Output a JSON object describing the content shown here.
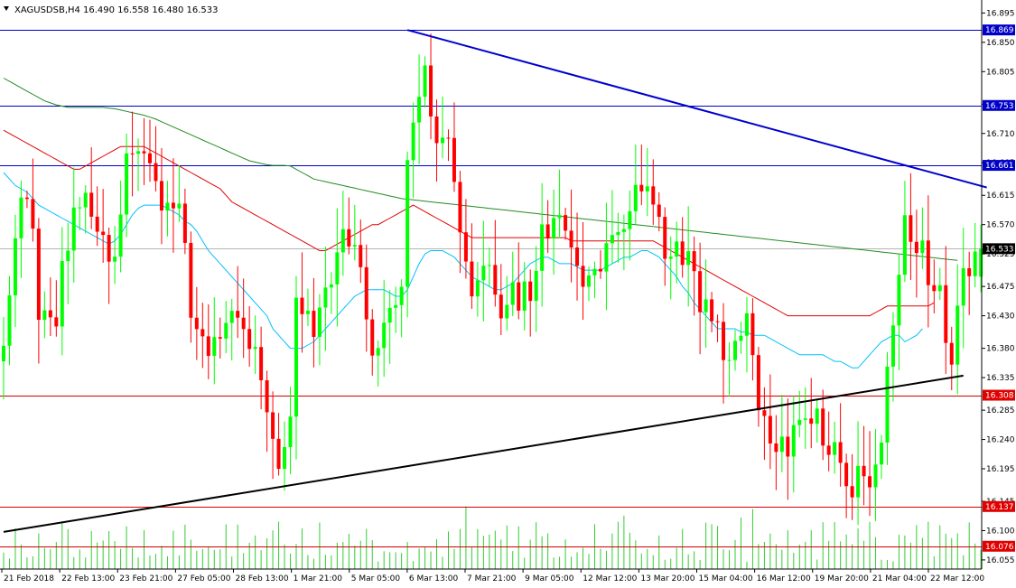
{
  "header": {
    "symbol": "XAGUSDSB,H4",
    "ohlc": "16.490 16.558 16.480 16.533"
  },
  "colors": {
    "bull": "#00ff00",
    "bear": "#ff0000",
    "volume": "#32cd32",
    "ma_short": "#00bfff",
    "ma_mid": "#e00000",
    "ma_long": "#228b22",
    "hline_blue": "#0000c8",
    "hline_red": "#d00000",
    "trend_down": "#0000cc",
    "trend_up": "#000000",
    "tag_blue": "#0000c8",
    "tag_red": "#e00000"
  },
  "chart_data": {
    "type": "candlestick",
    "y_range": [
      16.041,
      16.915
    ],
    "y_ticks": [
      "16.895",
      "16.850",
      "16.805",
      "16.755",
      "16.710",
      "16.665",
      "16.615",
      "16.570",
      "16.525",
      "16.475",
      "16.430",
      "16.380",
      "16.335",
      "16.285",
      "16.240",
      "16.195",
      "16.145",
      "16.100",
      "16.055"
    ],
    "x_ticks": [
      "21 Feb 2018",
      "22 Feb 13:00",
      "23 Feb 21:00",
      "27 Feb 05:00",
      "28 Feb 13:00",
      "1 Mar 21:00",
      "5 Mar 05:00",
      "6 Mar 13:00",
      "7 Mar 21:00",
      "9 Mar 05:00",
      "12 Mar 12:00",
      "13 Mar 20:00",
      "15 Mar 04:00",
      "16 Mar 12:00",
      "19 Mar 20:00",
      "21 Mar 04:00",
      "22 Mar 12:00"
    ],
    "levels": [
      {
        "label": "16.869",
        "value": 16.869,
        "style": "blue"
      },
      {
        "label": "16.753",
        "value": 16.753,
        "style": "blue"
      },
      {
        "label": "16.661",
        "value": 16.661,
        "style": "blue"
      },
      {
        "label": "16.533",
        "value": 16.533,
        "style": "current"
      },
      {
        "label": "16.308",
        "value": 16.308,
        "style": "red"
      },
      {
        "label": "16.137",
        "value": 16.137,
        "style": "red"
      },
      {
        "label": "16.076",
        "value": 16.076,
        "style": "red"
      }
    ],
    "trendlines": [
      {
        "name": "down",
        "from": [
          69,
          16.869
        ],
        "to": [
          168,
          16.627
        ]
      },
      {
        "name": "up",
        "from": [
          0,
          16.098
        ],
        "to": [
          164,
          16.338
        ]
      }
    ],
    "ma_short": [
      16.65,
      16.64,
      16.63,
      16.625,
      16.62,
      16.61,
      16.6,
      16.595,
      16.59,
      16.585,
      16.58,
      16.575,
      16.57,
      16.565,
      16.56,
      16.555,
      16.55,
      16.545,
      16.54,
      16.545,
      16.555,
      16.57,
      16.585,
      16.595,
      16.6,
      16.6,
      16.6,
      16.6,
      16.595,
      16.59,
      16.585,
      16.575,
      16.57,
      16.56,
      16.545,
      16.53,
      16.52,
      16.51,
      16.5,
      16.49,
      16.48,
      16.47,
      16.46,
      16.45,
      16.44,
      16.43,
      16.41,
      16.4,
      16.39,
      16.38,
      16.38,
      16.38,
      16.385,
      16.39,
      16.4,
      16.41,
      16.42,
      16.43,
      16.44,
      16.45,
      16.46,
      16.465,
      16.47,
      16.47,
      16.47,
      16.47,
      16.465,
      16.46,
      16.46,
      16.47,
      16.49,
      16.51,
      16.525,
      16.53,
      16.53,
      16.53,
      16.525,
      16.52,
      16.51,
      16.5,
      16.49,
      16.485,
      16.48,
      16.475,
      16.47,
      16.47,
      16.475,
      16.48,
      16.49,
      16.5,
      16.51,
      16.515,
      16.52,
      16.52,
      16.515,
      16.51,
      16.51,
      16.51,
      16.505,
      16.5,
      16.5,
      16.5,
      16.5,
      16.505,
      16.51,
      16.515,
      16.52,
      16.52,
      16.525,
      16.53,
      16.53,
      16.525,
      16.52,
      16.51,
      16.5,
      16.49,
      16.475,
      16.465,
      16.45,
      16.44,
      16.43,
      16.42,
      16.41,
      16.41,
      16.41,
      16.41,
      16.405,
      16.405,
      16.4,
      16.4,
      16.4,
      16.395,
      16.39,
      16.385,
      16.38,
      16.375,
      16.37,
      16.37,
      16.37,
      16.37,
      16.37,
      16.365,
      16.36,
      16.36,
      16.355,
      16.35,
      16.35,
      16.36,
      16.37,
      16.38,
      16.39,
      16.395,
      16.4,
      16.4,
      16.39,
      16.395,
      16.4,
      16.41
    ],
    "ma_mid": [
      16.715,
      16.71,
      16.705,
      16.7,
      16.695,
      16.69,
      16.685,
      16.68,
      16.675,
      16.67,
      16.665,
      16.66,
      16.655,
      16.655,
      16.66,
      16.665,
      16.67,
      16.675,
      16.68,
      16.685,
      16.69,
      16.69,
      16.69,
      16.69,
      16.69,
      16.685,
      16.68,
      16.675,
      16.67,
      16.665,
      16.66,
      16.655,
      16.65,
      16.645,
      16.64,
      16.635,
      16.63,
      16.625,
      16.615,
      16.605,
      16.6,
      16.595,
      16.59,
      16.585,
      16.58,
      16.575,
      16.57,
      16.565,
      16.56,
      16.555,
      16.55,
      16.545,
      16.54,
      16.535,
      16.53,
      16.53,
      16.535,
      16.54,
      16.545,
      16.55,
      16.555,
      16.56,
      16.565,
      16.57,
      16.57,
      16.575,
      16.58,
      16.585,
      16.59,
      16.595,
      16.6,
      16.595,
      16.59,
      16.585,
      16.58,
      16.575,
      16.57,
      16.565,
      16.56,
      16.555,
      16.55,
      16.55,
      16.55,
      16.55,
      16.55,
      16.55,
      16.55,
      16.55,
      16.55,
      16.55,
      16.55,
      16.55,
      16.55,
      16.55,
      16.55,
      16.55,
      16.55,
      16.545,
      16.545,
      16.545,
      16.545,
      16.545,
      16.545,
      16.545,
      16.545,
      16.545,
      16.545,
      16.545,
      16.545,
      16.545,
      16.545,
      16.545,
      16.54,
      16.535,
      16.53,
      16.525,
      16.52,
      16.515,
      16.51,
      16.505,
      16.5,
      16.495,
      16.49,
      16.485,
      16.48,
      16.475,
      16.47,
      16.465,
      16.46,
      16.455,
      16.45,
      16.445,
      16.44,
      16.435,
      16.43,
      16.43,
      16.43,
      16.43,
      16.43,
      16.43,
      16.43,
      16.43,
      16.43,
      16.43,
      16.43,
      16.43,
      16.43,
      16.43,
      16.43,
      16.435,
      16.44,
      16.445,
      16.445,
      16.445,
      16.445,
      16.445,
      16.445,
      16.445,
      16.445,
      16.45
    ],
    "ma_long": [
      16.795,
      16.79,
      16.785,
      16.78,
      16.775,
      16.77,
      16.765,
      16.76,
      16.757,
      16.754,
      16.752,
      16.75,
      16.75,
      16.75,
      16.75,
      16.75,
      16.75,
      16.75,
      16.749,
      16.748,
      16.746,
      16.744,
      16.742,
      16.74,
      16.738,
      16.735,
      16.732,
      16.728,
      16.724,
      16.72,
      16.716,
      16.712,
      16.708,
      16.704,
      16.7,
      16.696,
      16.692,
      16.688,
      16.684,
      16.68,
      16.676,
      16.672,
      16.668,
      16.666,
      16.664,
      16.662,
      16.661,
      16.661,
      16.661,
      16.66,
      16.655,
      16.65,
      16.645,
      16.64,
      16.638,
      16.636,
      16.634,
      16.632,
      16.63,
      16.628,
      16.626,
      16.624,
      16.622,
      16.62,
      16.618,
      16.616,
      16.614,
      16.612,
      16.61,
      16.609,
      16.608,
      16.607,
      16.606,
      16.605,
      16.604,
      16.603,
      16.602,
      16.601,
      16.6,
      16.599,
      16.598,
      16.597,
      16.596,
      16.595,
      16.594,
      16.593,
      16.592,
      16.591,
      16.59,
      16.589,
      16.588,
      16.587,
      16.586,
      16.585,
      16.584,
      16.583,
      16.582,
      16.581,
      16.58,
      16.579,
      16.578,
      16.577,
      16.576,
      16.575,
      16.574,
      16.573,
      16.572,
      16.571,
      16.57,
      16.569,
      16.568,
      16.567,
      16.566,
      16.565,
      16.564,
      16.563,
      16.562,
      16.561,
      16.56,
      16.559,
      16.558,
      16.557,
      16.556,
      16.555,
      16.554,
      16.553,
      16.552,
      16.551,
      16.55,
      16.549,
      16.548,
      16.547,
      16.546,
      16.545,
      16.544,
      16.543,
      16.542,
      16.541,
      16.54,
      16.539,
      16.538,
      16.537,
      16.536,
      16.535,
      16.534,
      16.533,
      16.532,
      16.531,
      16.53,
      16.529,
      16.528,
      16.527,
      16.526,
      16.525,
      16.524,
      16.523,
      16.522,
      16.521,
      16.52,
      16.519,
      16.518,
      16.517,
      16.516,
      16.515
    ]
  }
}
